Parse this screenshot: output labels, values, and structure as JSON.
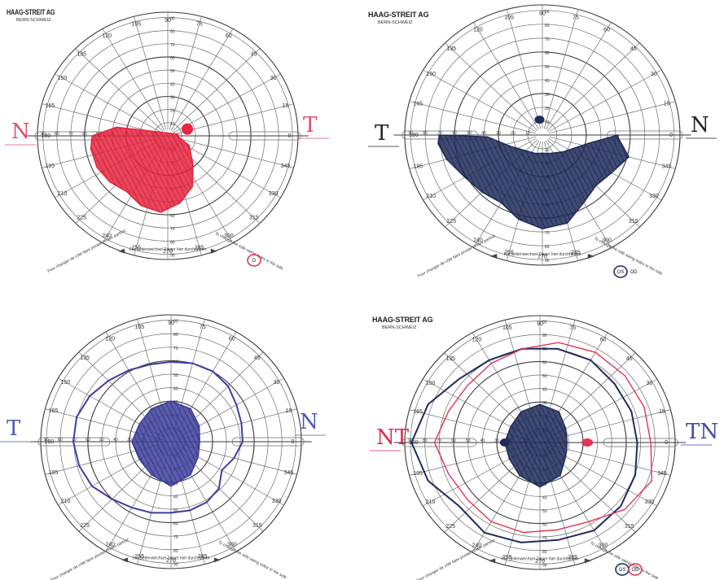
{
  "header": {
    "brand": "HAAG-STREIT AG",
    "brand_sub": "BERN-SCHWEIZ"
  },
  "chart_template": {
    "degree_labels": [
      "90",
      "105",
      "120",
      "135",
      "150",
      "165",
      "180",
      "195",
      "210",
      "225",
      "240",
      "255",
      "270",
      "285",
      "300",
      "315",
      "330",
      "345",
      "0",
      "15",
      "30",
      "45",
      "60",
      "75"
    ],
    "ring_labels": [
      "10",
      "20",
      "30",
      "40",
      "50",
      "60",
      "70",
      "80",
      "90"
    ],
    "note_left": "Pour changer de côté faire pivoter l'index partout",
    "note_center": "Für Seitenwechsel Zeiger hier durchführen",
    "note_right": "To change the side swing index to the side"
  },
  "charts": [
    {
      "side_left": "N",
      "side_right": "T",
      "eye_labels": [
        "D"
      ],
      "circled_eye": "D",
      "left_color": "#e0506a",
      "right_color": "#e0506a",
      "deficit_color": "#e8263f"
    },
    {
      "side_left": "T",
      "side_right": "N",
      "eye_labels": [
        "OS",
        "OD"
      ],
      "circled_eye": "OS",
      "left_color": "#222222",
      "right_color": "#222222",
      "deficit_color": "#1f2b5c"
    },
    {
      "side_left": "T",
      "side_right": "N",
      "eye_labels": [],
      "circled_eye": "",
      "left_color": "#4b5ab0",
      "right_color": "#4b5ab0",
      "deficit_color": "#3d3f9e"
    },
    {
      "side_left": "NT",
      "side_right": "TN",
      "eye_labels": [
        "OS",
        "OD"
      ],
      "circled_eye": "both",
      "left_color": "#e0284f",
      "right_color": "#3f4aa8",
      "deficit_color": "#1f2b5c",
      "isopter_colors": [
        "#1f2b5c",
        "#e53355"
      ]
    }
  ]
}
